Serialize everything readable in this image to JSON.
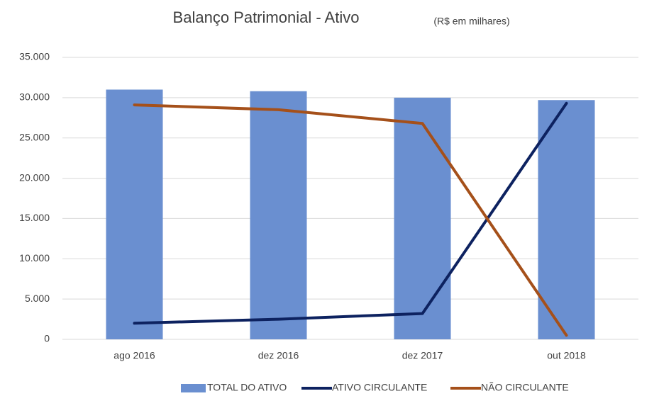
{
  "chart_data": {
    "type": "bar",
    "title": "Balanço Patrimonial - Ativo",
    "subtitle": "(R$ em milhares)",
    "categories": [
      "ago 2016",
      "dez 2016",
      "dez 2017",
      "out 2018"
    ],
    "series": [
      {
        "name": "TOTAL DO ATIVO",
        "type": "bar",
        "color": "#6a8fd0",
        "values": [
          31000,
          30800,
          30000,
          29700
        ]
      },
      {
        "name": "ATIVO CIRCULANTE",
        "type": "line",
        "color": "#0d2260",
        "values": [
          2000,
          2500,
          3200,
          29300
        ]
      },
      {
        "name": "NÃO CIRCULANTE",
        "type": "line",
        "color": "#a5501a",
        "values": [
          29100,
          28500,
          26800,
          500
        ]
      }
    ],
    "ylim": [
      0,
      35000
    ],
    "yticks": [
      0,
      {
        "value": 5000,
        "label": "5.000"
      },
      {
        "value": 10000,
        "label": "10.000"
      },
      {
        "value": 15000,
        "label": "15.000"
      },
      {
        "value": 20000,
        "label": "20.000"
      },
      {
        "value": 25000,
        "label": "25.000"
      },
      {
        "value": 30000,
        "label": "30.000"
      },
      {
        "value": 35000,
        "label": "35.000"
      }
    ],
    "grid": true,
    "legend": "bottom"
  }
}
